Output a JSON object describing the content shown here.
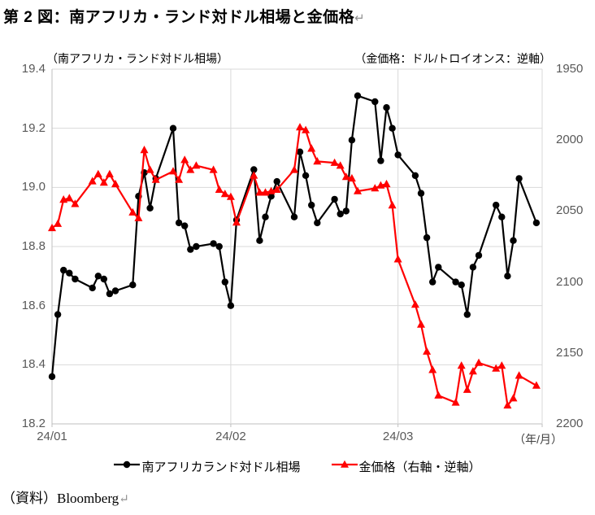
{
  "title": "第 2 図：南アフリカ・ランド対ドル相場と金価格",
  "return_mark": "↵",
  "axis_labels": {
    "left": "（南アフリカ・ランド対ドル相場）",
    "right": "（金価格：ドル/トロイオンス：逆軸）",
    "x_unit": "（年/月）"
  },
  "legend": [
    {
      "label": "南アフリカランド対ドル相場",
      "color": "#000000",
      "marker": "circle"
    },
    {
      "label": "金価格（右軸・逆軸）",
      "color": "#ff0000",
      "marker": "triangle"
    }
  ],
  "source": "（資料）Bloomberg",
  "colors": {
    "zar_series": "#000000",
    "gold_series": "#ff0000",
    "gridline": "#d9d9d9",
    "axis_line": "#bfbfbf",
    "tick_text": "#595959"
  },
  "chart_data": {
    "type": "line",
    "title": "第 2 図：南アフリカ・ランド対ドル相場と金価格",
    "x_axis": {
      "tick_labels": [
        "24/01",
        "24/02",
        "24/03"
      ],
      "tick_day_index": [
        0,
        31,
        60
      ],
      "axis_days": 85,
      "unit": "（年/月）"
    },
    "left_axis": {
      "label": "（南アフリカ・ランド対ドル相場）",
      "tick_labels": [
        "19.4",
        "19.2",
        "19.0",
        "18.8",
        "18.6",
        "18.4",
        "18.2"
      ],
      "max": 19.4,
      "min": 18.2
    },
    "right_axis": {
      "label": "（金価格：ドル/トロイオンス：逆軸）",
      "tick_labels": [
        "1950",
        "2000",
        "2050",
        "2100",
        "2150",
        "2200"
      ],
      "min": 1950,
      "max": 2200,
      "inverted": true
    },
    "grid": true,
    "legend_position": "bottom",
    "day_index": [
      0,
      1,
      2,
      3,
      4,
      7,
      8,
      9,
      10,
      11,
      14,
      15,
      16,
      17,
      18,
      21,
      22,
      23,
      24,
      25,
      28,
      29,
      30,
      31,
      32,
      35,
      36,
      37,
      38,
      39,
      42,
      43,
      44,
      45,
      46,
      49,
      50,
      51,
      52,
      53,
      56,
      57,
      58,
      59,
      60,
      63,
      64,
      65,
      66,
      67,
      70,
      71,
      72,
      73,
      74,
      77,
      78,
      79,
      80,
      81,
      84
    ],
    "series": [
      {
        "name": "南アフリカランド対ドル相場",
        "axis": "left",
        "color": "#000000",
        "marker": "circle",
        "values": [
          18.36,
          18.57,
          18.72,
          18.71,
          18.69,
          18.66,
          18.7,
          18.69,
          18.64,
          18.65,
          18.67,
          18.97,
          19.05,
          18.93,
          19.03,
          19.2,
          18.88,
          18.87,
          18.79,
          18.8,
          18.81,
          18.8,
          18.68,
          18.6,
          18.89,
          19.06,
          18.82,
          18.9,
          18.97,
          19.02,
          18.9,
          19.12,
          19.04,
          18.94,
          18.88,
          18.96,
          18.91,
          18.92,
          19.16,
          19.31,
          19.29,
          19.09,
          19.27,
          19.2,
          19.11,
          19.04,
          18.98,
          18.83,
          18.68,
          18.73,
          18.68,
          18.67,
          18.57,
          18.73,
          18.77,
          18.94,
          18.9,
          18.7,
          18.82,
          19.03,
          18.88
        ]
      },
      {
        "name": "金価格（右軸・逆軸）",
        "axis": "right",
        "color": "#ff0000",
        "marker": "triangle",
        "values": [
          2062,
          2059,
          2042,
          2041,
          2045,
          2029,
          2024,
          2030,
          2024,
          2031,
          2051,
          2055,
          2007,
          2021,
          2028,
          2022,
          2028,
          2014,
          2021,
          2018,
          2021,
          2035,
          2038,
          2040,
          2058,
          2025,
          2037,
          2037,
          2036,
          2035,
          2021,
          1991,
          1993,
          2006,
          2015,
          2016,
          2018,
          2026,
          2027,
          2036,
          2034,
          2032,
          2031,
          2046,
          2084,
          2116,
          2130,
          2149,
          2162,
          2180,
          2185,
          2159,
          2176,
          2163,
          2157,
          2161,
          2159,
          2187,
          2182,
          2166,
          2173
        ]
      }
    ]
  }
}
